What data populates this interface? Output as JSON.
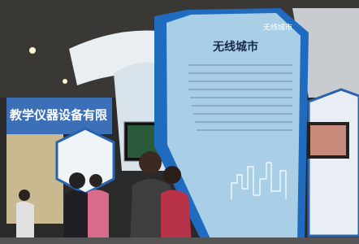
{
  "board": {
    "title": "无线城市",
    "corner_title": "无线城市"
  },
  "banner": {
    "text": "教学仪器设备有限"
  }
}
